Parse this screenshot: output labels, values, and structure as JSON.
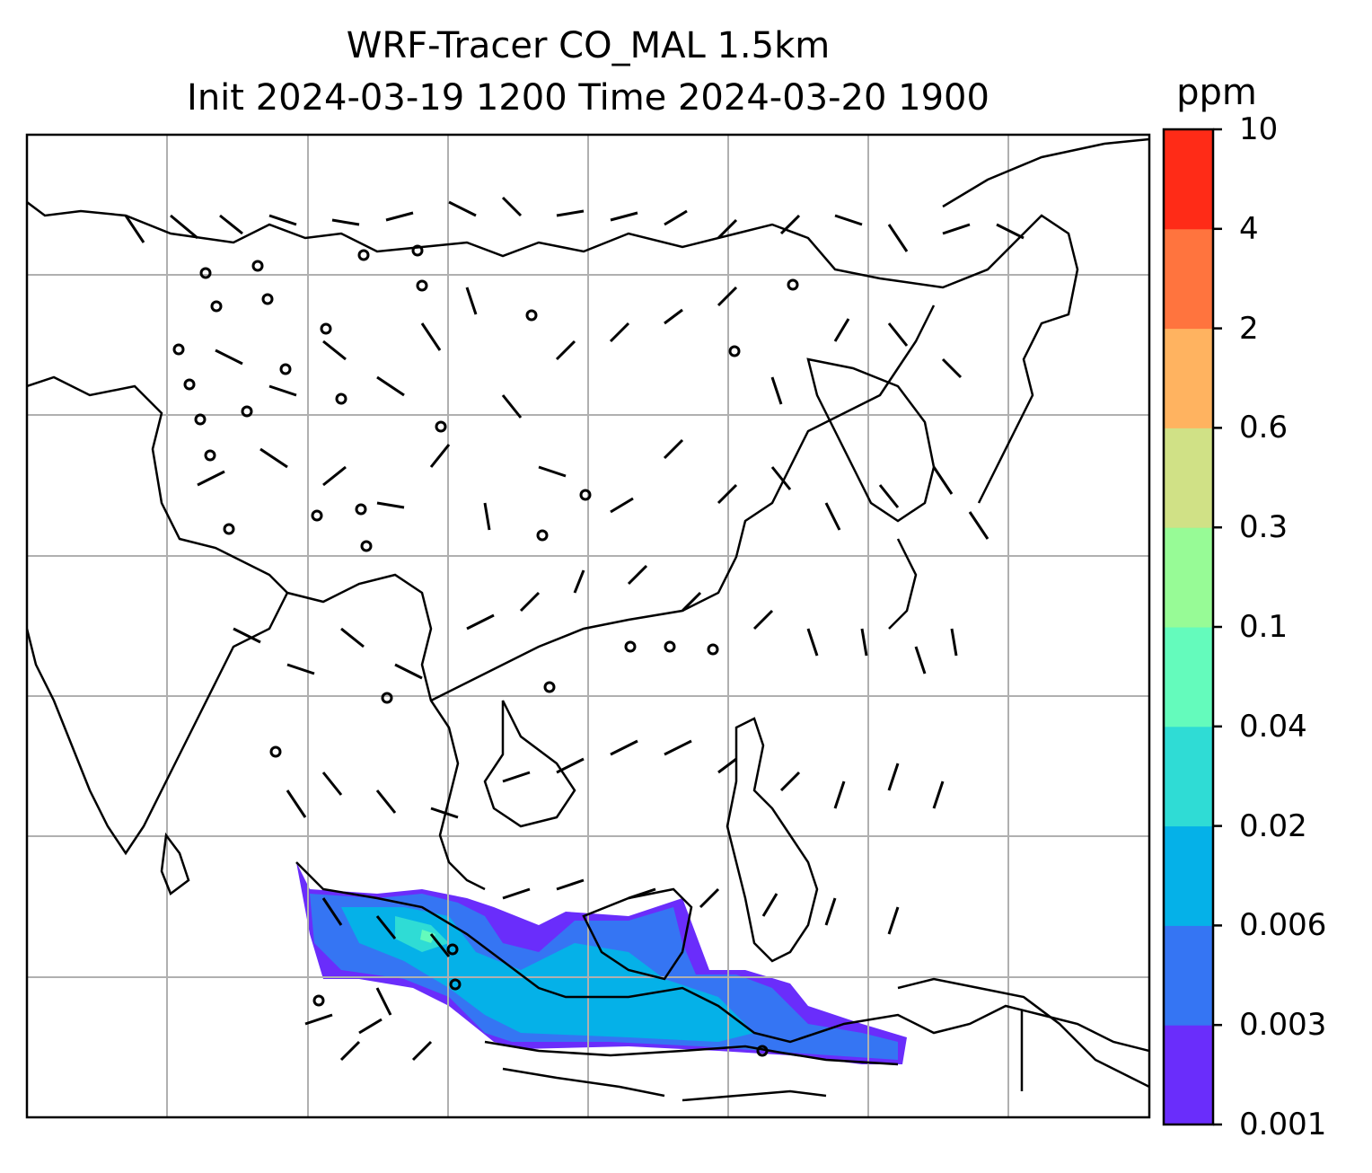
{
  "title": {
    "line1": "WRF-Tracer CO_MAL 1.5km",
    "line2": "Init 2024-03-19 1200 Time 2024-03-20 1900"
  },
  "colorbar": {
    "unit": "ppm",
    "ticks": [
      "0.001",
      "0.003",
      "0.006",
      "0.02",
      "0.04",
      "0.1",
      "0.3",
      "0.6",
      "2",
      "4",
      "10"
    ],
    "colors": [
      "#6a2dfb",
      "#3575f3",
      "#05b1e8",
      "#2fdcd5",
      "#64fbbc",
      "#97fb96",
      "#d0e186",
      "#ffb360",
      "#ff743e",
      "#ff2b17"
    ]
  },
  "map": {
    "basemap_colors": {
      "coastline": "#000000",
      "gridline": "#b0b0b0",
      "frame": "#000000"
    },
    "wind_barbs": "black barbs over region",
    "tracer_plume": {
      "region": "Java Sea / Sumatra / Borneo south coast",
      "levels_present": [
        "0.001",
        "0.003",
        "0.006",
        "0.02",
        "0.04"
      ]
    }
  }
}
